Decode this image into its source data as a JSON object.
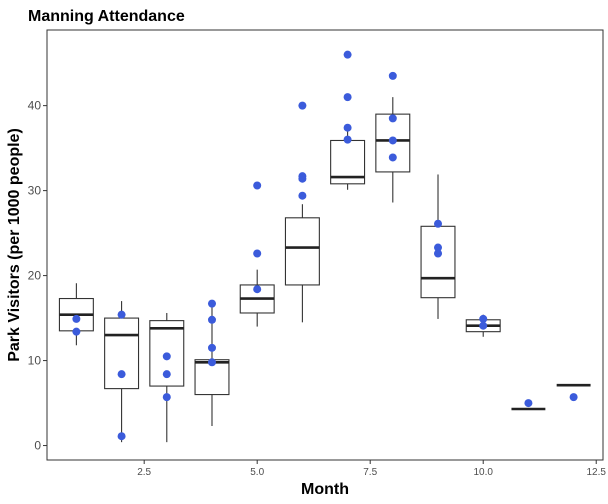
{
  "chart_data": {
    "type": "boxplot",
    "title": "Manning Attendance",
    "xlabel": "Month",
    "ylabel": "Park Visitors (per 1000 people)",
    "xlim": [
      0.35,
      12.65
    ],
    "ylim": [
      -1.7,
      48.9
    ],
    "xticks": [
      2.5,
      5.0,
      7.5,
      10.0,
      12.5
    ],
    "xtick_labels": [
      "2.5",
      "5.0",
      "7.5",
      "10.0",
      "12.5"
    ],
    "yticks": [
      0,
      10,
      20,
      30,
      40
    ],
    "ytick_labels": [
      "0",
      "10",
      "20",
      "30",
      "40"
    ],
    "grid": false,
    "point_color": "#3b5bdb",
    "boxes": [
      {
        "month": 1,
        "whisker_low": 11.8,
        "q1": 13.5,
        "median": 15.4,
        "q3": 17.3,
        "whisker_high": 19.1
      },
      {
        "month": 2,
        "whisker_low": 0.4,
        "q1": 6.7,
        "median": 13.0,
        "q3": 15.0,
        "whisker_high": 17.0
      },
      {
        "month": 3,
        "whisker_low": 0.4,
        "q1": 7.0,
        "median": 13.8,
        "q3": 14.7,
        "whisker_high": 15.6
      },
      {
        "month": 4,
        "whisker_low": 2.3,
        "q1": 6.0,
        "median": 9.8,
        "q3": 10.1,
        "whisker_high": 16.3
      },
      {
        "month": 5,
        "whisker_low": 14.0,
        "q1": 15.6,
        "median": 17.3,
        "q3": 18.9,
        "whisker_high": 20.7
      },
      {
        "month": 6,
        "whisker_low": 14.5,
        "q1": 18.9,
        "median": 23.3,
        "q3": 26.8,
        "whisker_high": 28.4
      },
      {
        "month": 7,
        "whisker_low": 30.1,
        "q1": 30.8,
        "median": 31.6,
        "q3": 35.9,
        "whisker_high": 37.5
      },
      {
        "month": 8,
        "whisker_low": 28.6,
        "q1": 32.2,
        "median": 35.9,
        "q3": 39.0,
        "whisker_high": 41.0
      },
      {
        "month": 9,
        "whisker_low": 14.9,
        "q1": 17.4,
        "median": 19.7,
        "q3": 25.8,
        "whisker_high": 31.9
      },
      {
        "month": 10,
        "whisker_low": 12.8,
        "q1": 13.4,
        "median": 14.1,
        "q3": 14.8,
        "whisker_high": 15.4
      },
      {
        "month": 11,
        "whisker_low": 4.3,
        "q1": 4.3,
        "median": 4.3,
        "q3": 4.3,
        "whisker_high": 4.3
      },
      {
        "month": 12,
        "whisker_low": 7.1,
        "q1": 7.1,
        "median": 7.1,
        "q3": 7.1,
        "whisker_high": 7.1
      }
    ],
    "points": [
      {
        "x": 1,
        "y": 14.9
      },
      {
        "x": 1,
        "y": 13.4
      },
      {
        "x": 2,
        "y": 15.4
      },
      {
        "x": 2,
        "y": 8.4
      },
      {
        "x": 2,
        "y": 1.1
      },
      {
        "x": 3,
        "y": 10.5
      },
      {
        "x": 3,
        "y": 8.4
      },
      {
        "x": 3,
        "y": 5.7
      },
      {
        "x": 4,
        "y": 16.7
      },
      {
        "x": 4,
        "y": 14.8
      },
      {
        "x": 4,
        "y": 11.5
      },
      {
        "x": 4,
        "y": 9.8
      },
      {
        "x": 5,
        "y": 30.6
      },
      {
        "x": 5,
        "y": 22.6
      },
      {
        "x": 5,
        "y": 18.4
      },
      {
        "x": 6,
        "y": 40.0
      },
      {
        "x": 6,
        "y": 31.7
      },
      {
        "x": 6,
        "y": 31.4
      },
      {
        "x": 6,
        "y": 29.4
      },
      {
        "x": 7,
        "y": 46.0
      },
      {
        "x": 7,
        "y": 41.0
      },
      {
        "x": 7,
        "y": 37.4
      },
      {
        "x": 7,
        "y": 36.0
      },
      {
        "x": 8,
        "y": 43.5
      },
      {
        "x": 8,
        "y": 38.5
      },
      {
        "x": 8,
        "y": 35.9
      },
      {
        "x": 8,
        "y": 33.9
      },
      {
        "x": 9,
        "y": 26.1
      },
      {
        "x": 9,
        "y": 23.3
      },
      {
        "x": 9,
        "y": 22.6
      },
      {
        "x": 10,
        "y": 14.9
      },
      {
        "x": 10,
        "y": 14.1
      },
      {
        "x": 11,
        "y": 5.0
      },
      {
        "x": 12,
        "y": 5.7
      }
    ]
  }
}
